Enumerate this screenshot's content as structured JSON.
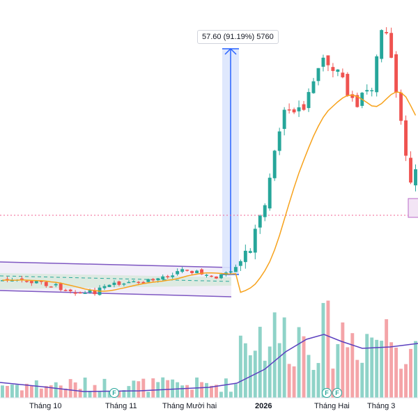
{
  "colors": {
    "up": "#26a69a",
    "down": "#ef5350",
    "up_volume": "#8fd3c8",
    "down_volume": "#f4a4a8",
    "ma": "#f7a21b",
    "volume_ma": "#5b3fbf",
    "channel": "#7e57c2",
    "channel_fill": "#ede7f6",
    "measure": "#2962ff",
    "measure_fill": "#dbe6fd",
    "dotted_level": "#f06292"
  },
  "measure_tool": {
    "label": "57.60 (91.19%) 5760"
  },
  "x_axis": {
    "labels": [
      {
        "text": "Tháng 10",
        "bold": false
      },
      {
        "text": "Tháng 11",
        "bold": false
      },
      {
        "text": "Tháng Mười hai",
        "bold": false
      },
      {
        "text": "2026",
        "bold": true
      },
      {
        "text": "Tháng Hai",
        "bold": false
      },
      {
        "text": "Tháng 3",
        "bold": false
      }
    ]
  },
  "badges": [
    {
      "icon": "f-event-icon",
      "text": "F"
    },
    {
      "icon": "f-event-icon",
      "text": "F"
    },
    {
      "icon": "f-event-icon",
      "text": "F"
    }
  ],
  "chart_data": {
    "type": "candlestick",
    "seed": 7,
    "candle_count": 86
  }
}
